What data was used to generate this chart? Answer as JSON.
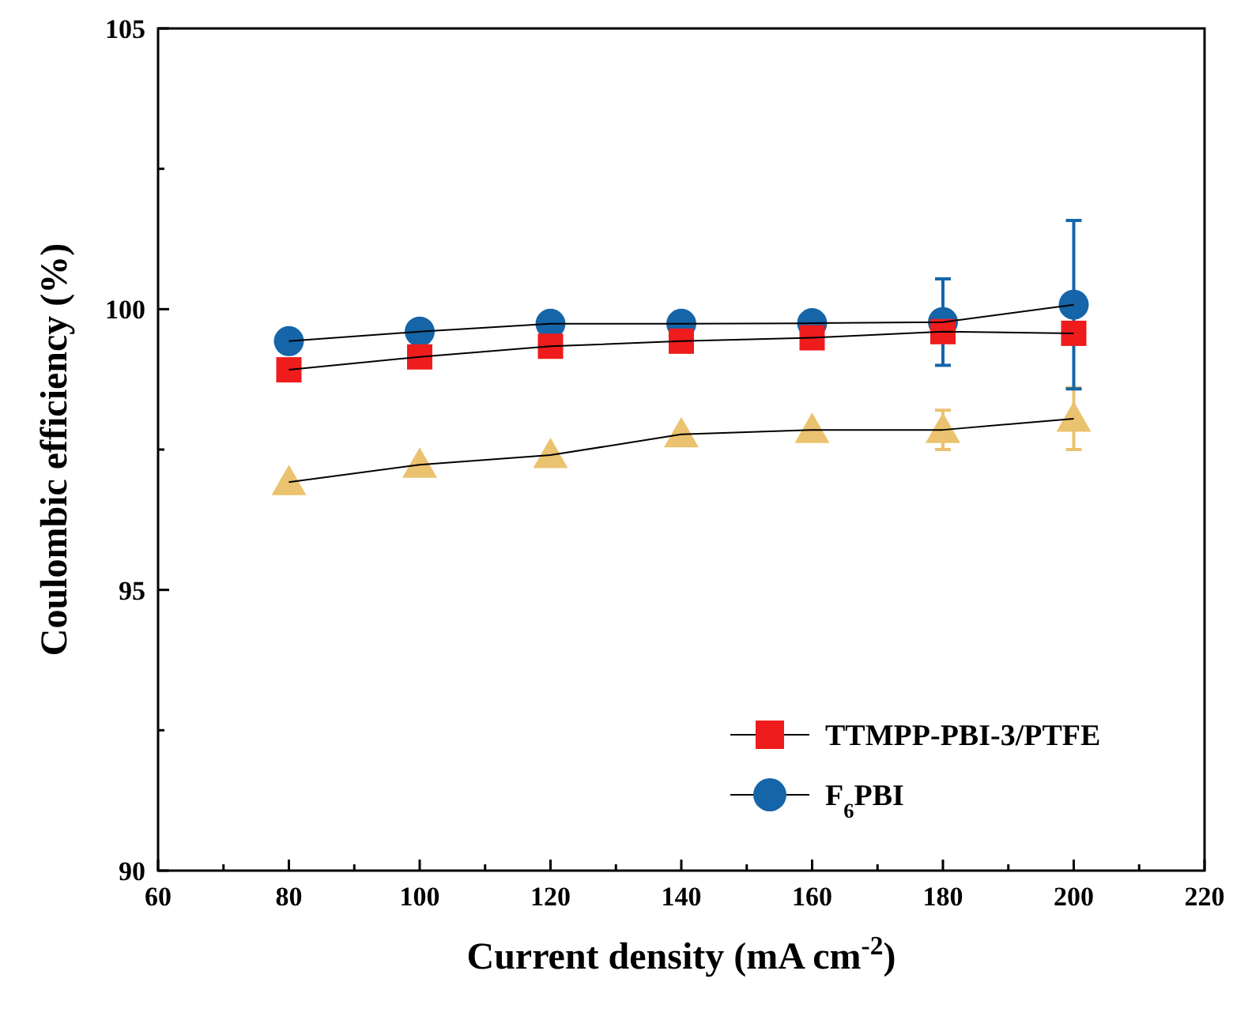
{
  "chart_data": {
    "type": "line",
    "xlabel": "Current density (mA cm$^{-2}$)",
    "ylabel": "Coulombic efficiency (%)",
    "x": [
      80,
      100,
      120,
      140,
      160,
      180,
      200
    ],
    "xlim": [
      60,
      220
    ],
    "xticks": [
      60,
      80,
      100,
      120,
      140,
      160,
      180,
      200,
      220
    ],
    "ylim": [
      90,
      105
    ],
    "yticks": [
      90,
      95,
      100,
      105
    ],
    "legend": "bottom right",
    "line_style": "solid",
    "series": [
      {
        "name": "TTMPP-PBI-3/PTFE",
        "color": "#ee1c1c",
        "marker": "square",
        "values": [
          98.92,
          99.15,
          99.34,
          99.43,
          99.49,
          99.6,
          99.57
        ]
      },
      {
        "name": "F$_{6}$PBI",
        "color": "#1565a8",
        "marker": "circle",
        "values": [
          99.43,
          99.6,
          99.74,
          99.74,
          99.75,
          99.77,
          100.08
        ],
        "errors": [
          null,
          null,
          null,
          null,
          null,
          0.77,
          1.5
        ]
      },
      {
        "color": "#ebc26f",
        "marker": "triangle",
        "values": [
          96.92,
          97.23,
          97.4,
          97.77,
          97.85,
          97.85,
          98.05
        ],
        "errors": [
          null,
          null,
          null,
          null,
          null,
          0.35,
          0.55
        ]
      }
    ]
  }
}
